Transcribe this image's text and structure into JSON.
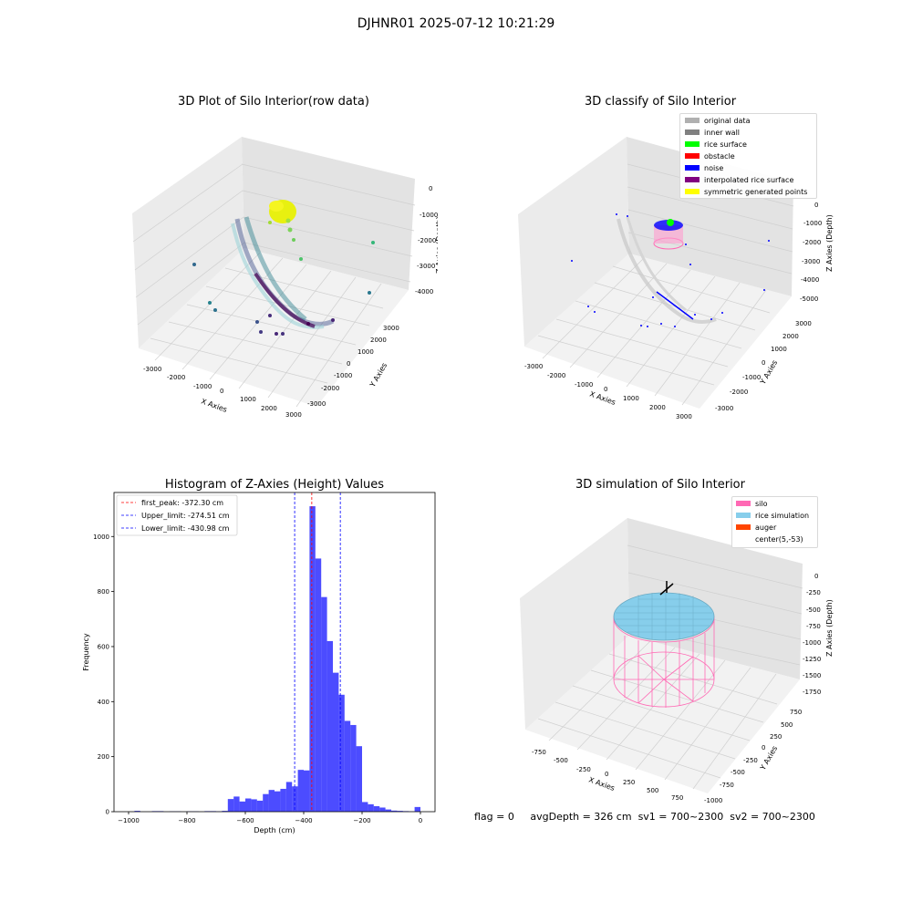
{
  "suptitle": "DJHNR01 2025-07-12 10:21:29",
  "panels": {
    "raw": {
      "title": "3D Plot of Silo Interior(row data)",
      "xlabel": "X Axies",
      "ylabel": "Y Axies",
      "zlabel": "Z Axies (Depth)",
      "xticks": [
        "-3000",
        "-2000",
        "-1000",
        "0",
        "1000",
        "2000",
        "3000"
      ],
      "yticks": [
        "3000",
        "2000",
        "1000",
        "0",
        "-1000",
        "-2000",
        "-3000"
      ],
      "zticks": [
        "0",
        "-1000",
        "-2000",
        "-3000",
        "-4000"
      ]
    },
    "classify": {
      "title": "3D classify of Silo Interior",
      "xlabel": "X Axies",
      "ylabel": "Y Axies",
      "zlabel": "Z Axies (Depth)",
      "xticks": [
        "-3000",
        "-2000",
        "-1000",
        "0",
        "1000",
        "2000",
        "3000"
      ],
      "yticks": [
        "3000",
        "2000",
        "1000",
        "0",
        "-1000",
        "-2000",
        "-3000"
      ],
      "zticks": [
        "0",
        "-1000",
        "-2000",
        "-3000",
        "-4000",
        "-5000"
      ],
      "legend": [
        {
          "label": "original data",
          "color": "#b0b0b0"
        },
        {
          "label": "inner wall",
          "color": "#808080"
        },
        {
          "label": "rice surface",
          "color": "#00ff00"
        },
        {
          "label": "obstacle",
          "color": "#ff0000"
        },
        {
          "label": "noise",
          "color": "#0000ff"
        },
        {
          "label": "interpolated rice surface",
          "color": "#800080"
        },
        {
          "label": "symmetric generated points",
          "color": "#ffff00"
        }
      ]
    },
    "simulation": {
      "title": "3D simulation of Silo Interior",
      "xlabel": "X Axies",
      "ylabel": "Y Axies",
      "zlabel": "Z Axies (Depth)",
      "xticks": [
        "-750",
        "-500",
        "-250",
        "0",
        "250",
        "500",
        "750"
      ],
      "yticks": [
        "750",
        "500",
        "250",
        "0",
        "-250",
        "-500",
        "-750",
        "-1000"
      ],
      "zticks": [
        "0",
        "-250",
        "-500",
        "-750",
        "-1000",
        "-1250",
        "-1500",
        "-1750"
      ],
      "legend": [
        {
          "label": "silo",
          "color": "#ff69b4"
        },
        {
          "label": "rice simulation",
          "color": "#87ceeb"
        },
        {
          "label": "auger",
          "color": "#ff4500"
        },
        {
          "label": "center(5,-53)",
          "color": ""
        }
      ]
    },
    "flags": {
      "flag": "flag = 0",
      "avg": "avgDepth = 326 cm",
      "sv1": "sv1 = 700~2300",
      "sv2": "sv2 = 700~2300"
    }
  },
  "chart_data": {
    "type": "bar",
    "title": "Histogram of Z-Axies (Height) Values",
    "xlabel": "Depth (cm)",
    "ylabel": "Frequency",
    "xlim": [
      -1050,
      50
    ],
    "ylim": [
      0,
      1160
    ],
    "xticks": [
      -1000,
      -800,
      -600,
      -400,
      -200,
      0
    ],
    "yticks": [
      0,
      200,
      400,
      600,
      800,
      1000
    ],
    "bin_width": 20,
    "bins": [
      {
        "x": -970,
        "v": 3
      },
      {
        "x": -910,
        "v": 2
      },
      {
        "x": -890,
        "v": 2
      },
      {
        "x": -850,
        "v": 1
      },
      {
        "x": -830,
        "v": 1
      },
      {
        "x": -790,
        "v": 1
      },
      {
        "x": -770,
        "v": 1
      },
      {
        "x": -730,
        "v": 2
      },
      {
        "x": -710,
        "v": 2
      },
      {
        "x": -690,
        "v": 1
      },
      {
        "x": -670,
        "v": 3
      },
      {
        "x": -650,
        "v": 46
      },
      {
        "x": -630,
        "v": 55
      },
      {
        "x": -610,
        "v": 37
      },
      {
        "x": -590,
        "v": 48
      },
      {
        "x": -570,
        "v": 45
      },
      {
        "x": -550,
        "v": 40
      },
      {
        "x": -530,
        "v": 64
      },
      {
        "x": -510,
        "v": 79
      },
      {
        "x": -490,
        "v": 74
      },
      {
        "x": -470,
        "v": 83
      },
      {
        "x": -450,
        "v": 108
      },
      {
        "x": -430,
        "v": 92
      },
      {
        "x": -410,
        "v": 152
      },
      {
        "x": -390,
        "v": 150
      },
      {
        "x": -370,
        "v": 1110
      },
      {
        "x": -350,
        "v": 920
      },
      {
        "x": -330,
        "v": 780
      },
      {
        "x": -310,
        "v": 620
      },
      {
        "x": -290,
        "v": 505
      },
      {
        "x": -270,
        "v": 425
      },
      {
        "x": -250,
        "v": 330
      },
      {
        "x": -230,
        "v": 315
      },
      {
        "x": -210,
        "v": 238
      },
      {
        "x": -190,
        "v": 35
      },
      {
        "x": -170,
        "v": 27
      },
      {
        "x": -150,
        "v": 20
      },
      {
        "x": -130,
        "v": 15
      },
      {
        "x": -110,
        "v": 8
      },
      {
        "x": -90,
        "v": 4
      },
      {
        "x": -70,
        "v": 3
      },
      {
        "x": -50,
        "v": 2
      },
      {
        "x": -30,
        "v": 1
      },
      {
        "x": -10,
        "v": 17
      }
    ],
    "bar_color": "#0000ff",
    "vlines": [
      {
        "value": -372.3,
        "label": "first_peak: -372.30 cm",
        "color": "#ff0000"
      },
      {
        "value": -274.51,
        "label": "Upper_limit: -274.51 cm",
        "color": "#0000ff"
      },
      {
        "value": -430.98,
        "label": "Lower_limit: -430.98 cm",
        "color": "#0000ff"
      }
    ],
    "legend_position": "upper-left"
  }
}
